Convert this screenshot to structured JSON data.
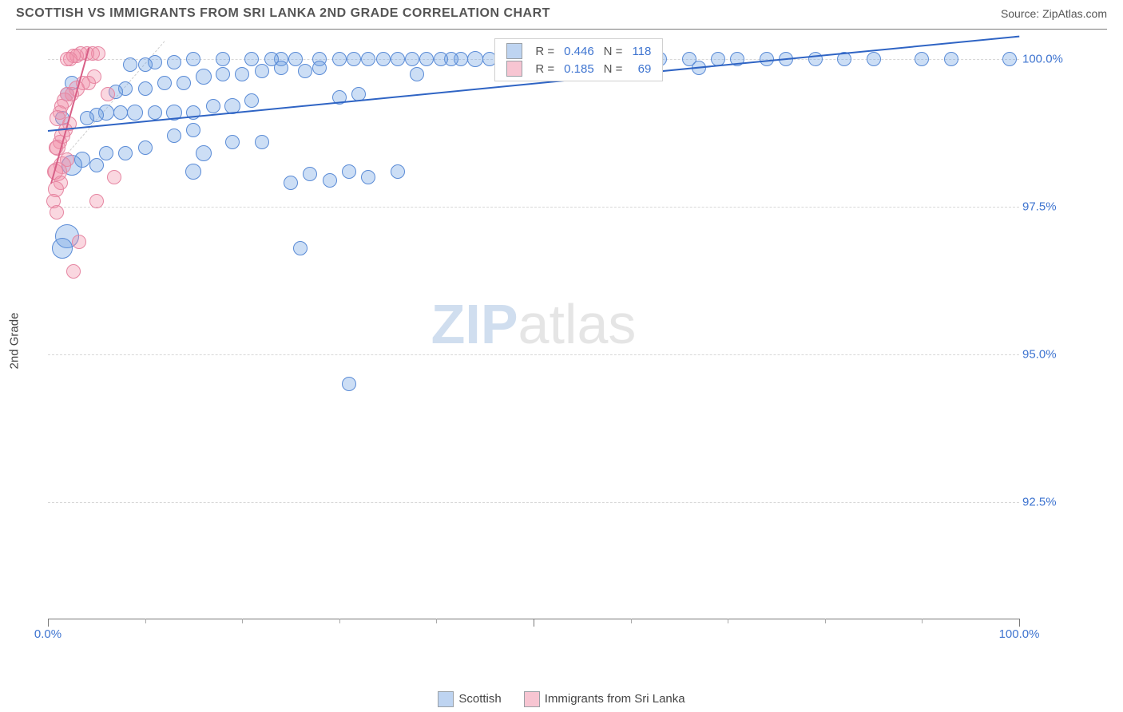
{
  "header": {
    "title": "SCOTTISH VS IMMIGRANTS FROM SRI LANKA 2ND GRADE CORRELATION CHART",
    "source_label": "Source: ",
    "source_value": "ZipAtlas.com"
  },
  "axes": {
    "ylabel": "2nd Grade",
    "xlim": [
      0,
      100
    ],
    "ylim": [
      90.5,
      100.5
    ],
    "ytick_values": [
      92.5,
      95.0,
      97.5,
      100.0
    ],
    "ytick_labels": [
      "92.5%",
      "95.0%",
      "97.5%",
      "100.0%"
    ],
    "ytick_color": "#3e74d0",
    "xtick_major": [
      0,
      50,
      100
    ],
    "xtick_minor": [
      10,
      20,
      30,
      40,
      60,
      70,
      80,
      90
    ],
    "xtick_labels": {
      "0": "0.0%",
      "100": "100.0%"
    },
    "xtick_color": "#3e74d0",
    "grid_color": "#d8d8d8",
    "axis_color": "#7a7a7a",
    "background_color": "#ffffff"
  },
  "watermark": {
    "zip": "ZIP",
    "atlas": "atlas"
  },
  "series": {
    "scottish": {
      "label": "Scottish",
      "fill": "rgba(110,160,225,0.35)",
      "stroke": "#5a8bd6",
      "legend_fill": "rgba(110,160,225,0.45)",
      "R": 0.446,
      "N": 118,
      "trend": {
        "x1": 0,
        "y1": 98.8,
        "x2": 100,
        "y2": 100.4,
        "color": "#2f64c4"
      },
      "points": [
        {
          "x": 99,
          "y": 100,
          "r": 9
        },
        {
          "x": 93,
          "y": 100,
          "r": 9
        },
        {
          "x": 90,
          "y": 100,
          "r": 9
        },
        {
          "x": 85,
          "y": 100,
          "r": 9
        },
        {
          "x": 82,
          "y": 100,
          "r": 9
        },
        {
          "x": 79,
          "y": 100,
          "r": 9
        },
        {
          "x": 76,
          "y": 100,
          "r": 9
        },
        {
          "x": 74,
          "y": 100,
          "r": 9
        },
        {
          "x": 71,
          "y": 100,
          "r": 9
        },
        {
          "x": 69,
          "y": 100,
          "r": 9
        },
        {
          "x": 66,
          "y": 100,
          "r": 9
        },
        {
          "x": 63,
          "y": 100,
          "r": 9
        },
        {
          "x": 60,
          "y": 100,
          "r": 9
        },
        {
          "x": 58,
          "y": 100,
          "r": 10
        },
        {
          "x": 56,
          "y": 100,
          "r": 9
        },
        {
          "x": 54,
          "y": 100,
          "r": 9
        },
        {
          "x": 52,
          "y": 100,
          "r": 9
        },
        {
          "x": 50,
          "y": 100,
          "r": 9
        },
        {
          "x": 48.5,
          "y": 100,
          "r": 9
        },
        {
          "x": 47,
          "y": 100,
          "r": 10
        },
        {
          "x": 45.5,
          "y": 100,
          "r": 9
        },
        {
          "x": 44,
          "y": 100,
          "r": 10
        },
        {
          "x": 42.5,
          "y": 100,
          "r": 9
        },
        {
          "x": 41.5,
          "y": 100,
          "r": 9
        },
        {
          "x": 40.5,
          "y": 100,
          "r": 9
        },
        {
          "x": 39,
          "y": 100,
          "r": 9
        },
        {
          "x": 37.5,
          "y": 100,
          "r": 9
        },
        {
          "x": 36,
          "y": 100,
          "r": 9
        },
        {
          "x": 34.5,
          "y": 100,
          "r": 9
        },
        {
          "x": 33,
          "y": 100,
          "r": 9
        },
        {
          "x": 31.5,
          "y": 100,
          "r": 9
        },
        {
          "x": 30,
          "y": 100,
          "r": 9
        },
        {
          "x": 28,
          "y": 100,
          "r": 9
        },
        {
          "x": 25.5,
          "y": 100,
          "r": 9
        },
        {
          "x": 24,
          "y": 100,
          "r": 9
        },
        {
          "x": 23,
          "y": 100,
          "r": 9
        },
        {
          "x": 21,
          "y": 100,
          "r": 9
        },
        {
          "x": 18,
          "y": 100,
          "r": 9
        },
        {
          "x": 15,
          "y": 100,
          "r": 9
        },
        {
          "x": 13,
          "y": 99.95,
          "r": 9
        },
        {
          "x": 11,
          "y": 99.95,
          "r": 9
        },
        {
          "x": 10,
          "y": 99.9,
          "r": 9
        },
        {
          "x": 8.5,
          "y": 99.9,
          "r": 9
        },
        {
          "x": 67,
          "y": 99.85,
          "r": 9
        },
        {
          "x": 28,
          "y": 99.85,
          "r": 9
        },
        {
          "x": 26.5,
          "y": 99.8,
          "r": 9
        },
        {
          "x": 24,
          "y": 99.85,
          "r": 9
        },
        {
          "x": 22,
          "y": 99.8,
          "r": 9
        },
        {
          "x": 20,
          "y": 99.75,
          "r": 9
        },
        {
          "x": 18,
          "y": 99.75,
          "r": 9
        },
        {
          "x": 16,
          "y": 99.7,
          "r": 10
        },
        {
          "x": 14,
          "y": 99.6,
          "r": 9
        },
        {
          "x": 12,
          "y": 99.6,
          "r": 9
        },
        {
          "x": 10,
          "y": 99.5,
          "r": 9
        },
        {
          "x": 8,
          "y": 99.5,
          "r": 9
        },
        {
          "x": 7,
          "y": 99.45,
          "r": 9
        },
        {
          "x": 38,
          "y": 99.75,
          "r": 9
        },
        {
          "x": 32,
          "y": 99.4,
          "r": 9
        },
        {
          "x": 30,
          "y": 99.35,
          "r": 9
        },
        {
          "x": 21,
          "y": 99.3,
          "r": 9
        },
        {
          "x": 19,
          "y": 99.2,
          "r": 10
        },
        {
          "x": 17,
          "y": 99.2,
          "r": 9
        },
        {
          "x": 15,
          "y": 99.1,
          "r": 9
        },
        {
          "x": 13,
          "y": 99.1,
          "r": 10
        },
        {
          "x": 11,
          "y": 99.1,
          "r": 9
        },
        {
          "x": 9,
          "y": 99.1,
          "r": 10
        },
        {
          "x": 7.5,
          "y": 99.1,
          "r": 9
        },
        {
          "x": 6,
          "y": 99.1,
          "r": 10
        },
        {
          "x": 5,
          "y": 99.05,
          "r": 9
        },
        {
          "x": 4,
          "y": 99.0,
          "r": 9
        },
        {
          "x": 15,
          "y": 98.8,
          "r": 9
        },
        {
          "x": 13,
          "y": 98.7,
          "r": 9
        },
        {
          "x": 19,
          "y": 98.6,
          "r": 9
        },
        {
          "x": 22,
          "y": 98.6,
          "r": 9
        },
        {
          "x": 16,
          "y": 98.4,
          "r": 10
        },
        {
          "x": 10,
          "y": 98.5,
          "r": 9
        },
        {
          "x": 8,
          "y": 98.4,
          "r": 9
        },
        {
          "x": 6,
          "y": 98.4,
          "r": 9
        },
        {
          "x": 5,
          "y": 98.2,
          "r": 9
        },
        {
          "x": 3.5,
          "y": 98.3,
          "r": 10
        },
        {
          "x": 36,
          "y": 98.1,
          "r": 9
        },
        {
          "x": 33,
          "y": 98.0,
          "r": 9
        },
        {
          "x": 31,
          "y": 98.1,
          "r": 9
        },
        {
          "x": 29,
          "y": 97.95,
          "r": 9
        },
        {
          "x": 27,
          "y": 98.05,
          "r": 9
        },
        {
          "x": 25,
          "y": 97.9,
          "r": 9
        },
        {
          "x": 2.5,
          "y": 98.2,
          "r": 13
        },
        {
          "x": 2,
          "y": 97.0,
          "r": 15
        },
        {
          "x": 1.5,
          "y": 96.8,
          "r": 13
        },
        {
          "x": 1.5,
          "y": 99.0,
          "r": 9
        },
        {
          "x": 2,
          "y": 99.4,
          "r": 9
        },
        {
          "x": 2.5,
          "y": 99.6,
          "r": 9
        },
        {
          "x": 15,
          "y": 98.1,
          "r": 10
        },
        {
          "x": 26,
          "y": 96.8,
          "r": 9
        },
        {
          "x": 31,
          "y": 94.5,
          "r": 9
        }
      ]
    },
    "srilanka": {
      "label": "Immigrants from Sri Lanka",
      "fill": "rgba(240,140,165,0.35)",
      "stroke": "#e686a2",
      "legend_fill": "rgba(240,140,165,0.5)",
      "R": 0.185,
      "N": 69,
      "trend": {
        "x1": 0.3,
        "y1": 97.9,
        "x2": 4.2,
        "y2": 100.2,
        "color": "#d85f87"
      },
      "points": [
        {
          "x": 5.2,
          "y": 100.1,
          "r": 9
        },
        {
          "x": 4.6,
          "y": 100.1,
          "r": 9
        },
        {
          "x": 4.0,
          "y": 100.1,
          "r": 9
        },
        {
          "x": 3.4,
          "y": 100.1,
          "r": 9
        },
        {
          "x": 3.0,
          "y": 100.05,
          "r": 9
        },
        {
          "x": 2.6,
          "y": 100.05,
          "r": 9
        },
        {
          "x": 2.3,
          "y": 100.0,
          "r": 9
        },
        {
          "x": 2.0,
          "y": 100.0,
          "r": 9
        },
        {
          "x": 4.8,
          "y": 99.7,
          "r": 9
        },
        {
          "x": 4.2,
          "y": 99.6,
          "r": 9
        },
        {
          "x": 3.6,
          "y": 99.6,
          "r": 9
        },
        {
          "x": 6.2,
          "y": 99.4,
          "r": 9
        },
        {
          "x": 3.0,
          "y": 99.5,
          "r": 10
        },
        {
          "x": 2.5,
          "y": 99.4,
          "r": 9
        },
        {
          "x": 2.0,
          "y": 99.4,
          "r": 9
        },
        {
          "x": 1.7,
          "y": 99.3,
          "r": 10
        },
        {
          "x": 1.4,
          "y": 99.2,
          "r": 9
        },
        {
          "x": 1.2,
          "y": 99.1,
          "r": 9
        },
        {
          "x": 1.0,
          "y": 99.0,
          "r": 10
        },
        {
          "x": 2.2,
          "y": 98.9,
          "r": 9
        },
        {
          "x": 1.8,
          "y": 98.8,
          "r": 9
        },
        {
          "x": 1.5,
          "y": 98.7,
          "r": 10
        },
        {
          "x": 1.2,
          "y": 98.6,
          "r": 9
        },
        {
          "x": 1.0,
          "y": 98.5,
          "r": 10
        },
        {
          "x": 0.8,
          "y": 98.5,
          "r": 9
        },
        {
          "x": 2.0,
          "y": 98.3,
          "r": 9
        },
        {
          "x": 1.5,
          "y": 98.2,
          "r": 11
        },
        {
          "x": 1.0,
          "y": 98.1,
          "r": 12
        },
        {
          "x": 0.7,
          "y": 98.1,
          "r": 10
        },
        {
          "x": 6.8,
          "y": 98.0,
          "r": 9
        },
        {
          "x": 1.3,
          "y": 97.9,
          "r": 9
        },
        {
          "x": 0.8,
          "y": 97.8,
          "r": 10
        },
        {
          "x": 5.0,
          "y": 97.6,
          "r": 9
        },
        {
          "x": 0.6,
          "y": 97.6,
          "r": 9
        },
        {
          "x": 0.9,
          "y": 97.4,
          "r": 9
        },
        {
          "x": 3.2,
          "y": 96.9,
          "r": 9
        },
        {
          "x": 2.6,
          "y": 96.4,
          "r": 9
        }
      ]
    }
  },
  "legend_box": {
    "swatch_border": "#9aa0a6",
    "value_color": "#3e74d0",
    "label_color": "#555",
    "headers": {
      "r": "R =",
      "n": "N ="
    }
  },
  "bottom_legend": {
    "items": [
      "scottish",
      "srilanka"
    ]
  }
}
